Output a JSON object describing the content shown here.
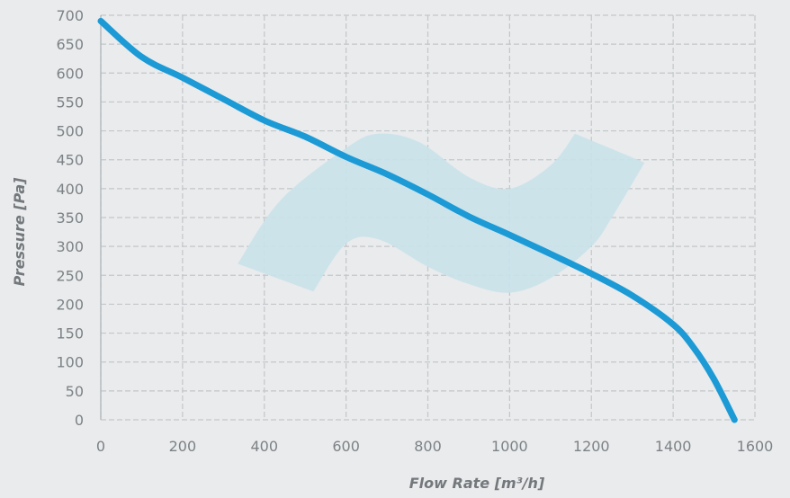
{
  "chart_data": {
    "type": "line",
    "title": "",
    "xlabel": "Flow Rate [m³/h]",
    "ylabel": "Pressure [Pa]",
    "xlim": [
      0,
      1600
    ],
    "ylim": [
      0,
      700
    ],
    "xticks": [
      0,
      200,
      400,
      600,
      800,
      1000,
      1200,
      1400,
      1600
    ],
    "yticks": [
      0,
      50,
      100,
      150,
      200,
      250,
      300,
      350,
      400,
      450,
      500,
      550,
      600,
      650,
      700
    ],
    "grid": true,
    "colors": {
      "line": "#1b9ad6",
      "band": "#c9e2ea",
      "grid": "#c4c7ca",
      "text": "#7d8286",
      "background": "#e9ebec"
    },
    "series": [
      {
        "x": [
          0,
          100,
          200,
          300,
          400,
          500,
          600,
          700,
          800,
          900,
          1000,
          1100,
          1200,
          1300,
          1400,
          1450,
          1500,
          1550
        ],
        "y": [
          690,
          628,
          592,
          555,
          518,
          490,
          455,
          425,
          390,
          352,
          320,
          287,
          253,
          215,
          165,
          125,
          70,
          0
        ]
      }
    ],
    "band": {
      "upper": {
        "x": [
          335,
          440,
          600,
          680,
          780,
          900,
          1000,
          1100,
          1160
        ],
        "y": [
          270,
          380,
          470,
          495,
          480,
          420,
          400,
          440,
          495
        ]
      },
      "lower": {
        "x": [
          1330,
          1250,
          1200,
          1100,
          1000,
          900,
          800,
          680,
          600,
          520
        ],
        "y": [
          445,
          350,
          300,
          245,
          220,
          235,
          265,
          312,
          305,
          222
        ]
      }
    }
  }
}
